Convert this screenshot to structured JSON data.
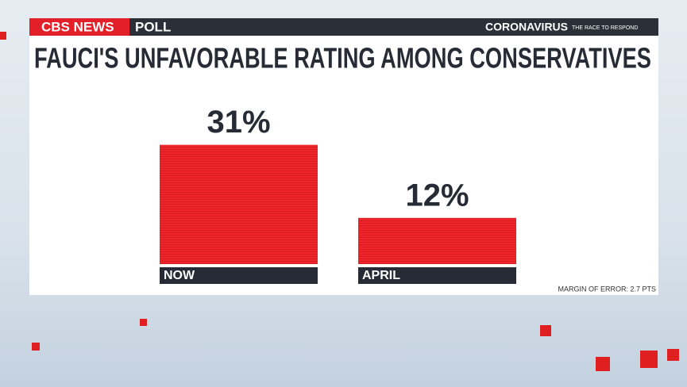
{
  "banner": {
    "brand": "CBS NEWS",
    "label": "POLL",
    "topic": "CORONAVIRUS",
    "tagline": "THE RACE TO RESPOND"
  },
  "chart_data": {
    "type": "bar",
    "title": "FAUCI'S UNFAVORABLE RATING AMONG CONSERVATIVES",
    "categories": [
      "NOW",
      "APRIL"
    ],
    "values": [
      31,
      12
    ],
    "value_labels": [
      "31%",
      "12%"
    ],
    "color": "#f0262b",
    "note": "MARGIN OF ERROR: 2.7 PTS"
  }
}
